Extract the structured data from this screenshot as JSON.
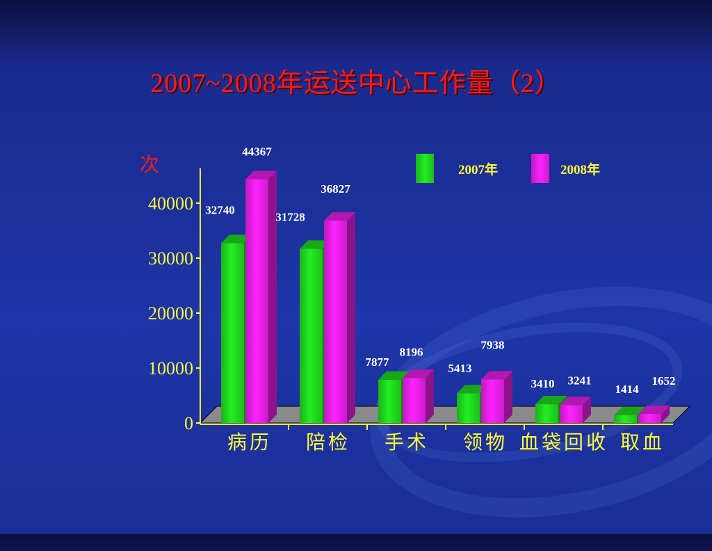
{
  "title": "2007~2008年运送中心工作量（2）",
  "chart_data": {
    "type": "bar",
    "title": "2007~2008年运送中心工作量（2）",
    "ylabel": "次",
    "xlabel": "",
    "categories": [
      "病历",
      "陪检",
      "手术",
      "领物",
      "血袋回收",
      "取血"
    ],
    "series": [
      {
        "name": "2007年",
        "values": [
          32740,
          31728,
          7877,
          5413,
          3410,
          1414
        ],
        "color": "#22ee22"
      },
      {
        "name": "2008年",
        "values": [
          44367,
          36827,
          8196,
          7938,
          3241,
          1652
        ],
        "color": "#ff22ff"
      }
    ],
    "yticks": [
      0,
      10000,
      20000,
      30000,
      40000
    ],
    "ylim": [
      0,
      45000
    ],
    "legend_position": "top-right",
    "grid": false,
    "style": "3d-bar"
  },
  "colors": {
    "background": "#1e35a8",
    "title": "#ff1a1a",
    "axis_text": "#ffff33",
    "data_label": "#ffffff"
  }
}
